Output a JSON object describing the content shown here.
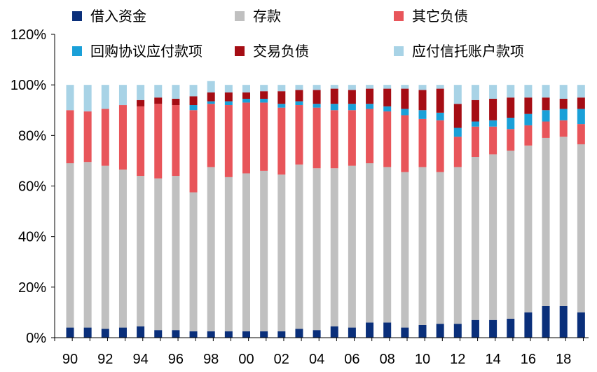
{
  "chart_data": {
    "type": "bar",
    "stacked": true,
    "normalized": true,
    "categories": [
      "90",
      "91",
      "92",
      "93",
      "94",
      "95",
      "96",
      "97",
      "98",
      "99",
      "00",
      "01",
      "02",
      "03",
      "04",
      "05",
      "06",
      "07",
      "08",
      "09",
      "10",
      "11",
      "12",
      "13",
      "14",
      "15",
      "16",
      "17",
      "18",
      "19"
    ],
    "x_tick_labels": [
      "90",
      "92",
      "94",
      "96",
      "98",
      "00",
      "02",
      "04",
      "06",
      "08",
      "10",
      "12",
      "14",
      "16",
      "18"
    ],
    "ylim": [
      0,
      120
    ],
    "y_ticks": [
      0,
      20,
      40,
      60,
      80,
      100,
      120
    ],
    "y_tick_labels": [
      "0%",
      "20%",
      "40%",
      "60%",
      "80%",
      "100%",
      "120%"
    ],
    "grid": false,
    "legend_position": "top",
    "series": [
      {
        "name": "借入资金",
        "color": "#0a2f7a",
        "values": [
          4,
          4,
          3.5,
          4,
          4.5,
          3,
          3,
          2.5,
          2.5,
          2.5,
          2.5,
          2.5,
          2.5,
          3.5,
          3,
          4.5,
          4,
          6,
          6,
          4,
          5,
          5.5,
          5.5,
          7,
          7,
          7.5,
          10,
          12.5,
          12.5,
          10
        ]
      },
      {
        "name": "存款",
        "color": "#c0c0c0",
        "values": [
          65,
          65.5,
          64.5,
          62.5,
          59.5,
          60,
          61,
          55,
          65,
          61,
          62.5,
          63.5,
          62,
          65,
          64,
          62.5,
          64,
          63,
          61.5,
          61.5,
          62.5,
          60,
          62,
          64.5,
          65.5,
          66.5,
          66,
          66.5,
          67,
          66.5
        ]
      },
      {
        "name": "其它负债",
        "color": "#e8555a",
        "values": [
          21,
          20,
          22.5,
          25.5,
          27.5,
          29.5,
          28,
          32.5,
          25,
          28.5,
          28,
          27,
          26.5,
          23.5,
          24,
          23,
          22,
          21.5,
          22,
          22.5,
          19,
          20.5,
          12,
          12,
          11,
          8.5,
          8,
          6.5,
          6.5,
          8
        ]
      },
      {
        "name": "回购协议应付款项",
        "color": "#1aa0d8",
        "values": [
          0,
          0,
          0,
          0,
          0,
          0,
          0,
          2,
          1,
          1.5,
          1.5,
          1.5,
          1.5,
          1.5,
          1.5,
          2.5,
          2.5,
          2,
          2,
          2.5,
          3.5,
          3,
          3.5,
          2,
          2.5,
          4.5,
          4.5,
          4.5,
          4.5,
          6
        ]
      },
      {
        "name": "交易负债",
        "color": "#a50d14",
        "values": [
          0,
          0,
          0,
          0,
          2.5,
          2.5,
          2.5,
          3.5,
          3.5,
          3.5,
          2.5,
          3,
          5,
          4.5,
          5.5,
          6,
          5.5,
          6,
          7,
          8,
          8,
          9.5,
          9.5,
          8.5,
          8.5,
          8,
          6.5,
          5,
          4,
          4.5
        ]
      },
      {
        "name": "应付信托账户款项",
        "color": "#a8d3e6",
        "values": [
          10,
          10.5,
          9.5,
          8,
          6,
          5,
          5.5,
          4.5,
          4.5,
          3,
          3,
          2.5,
          2.5,
          2,
          2,
          1.5,
          2,
          1.5,
          1.5,
          1.5,
          2,
          1.5,
          7.5,
          6,
          5.5,
          5,
          5,
          5,
          5.5,
          5
        ]
      }
    ]
  }
}
